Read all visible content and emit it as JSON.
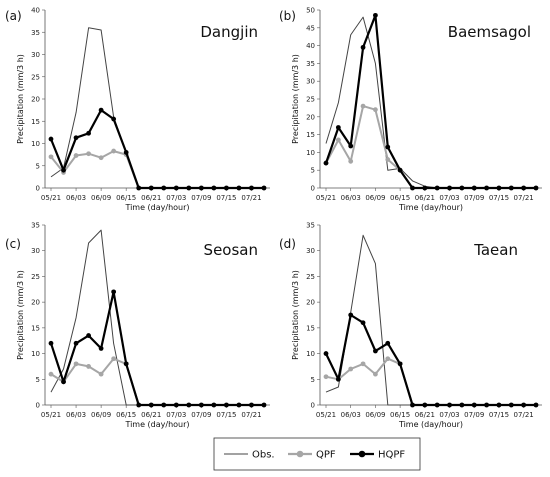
{
  "chart_data": [
    {
      "type": "line",
      "panel_label": "(a)",
      "title": "Dangjin",
      "xlabel": "Time (day/hour)",
      "ylabel": "Precipitation (mm/3 h)",
      "ylim": [
        0,
        40
      ],
      "yticks": [
        0,
        5,
        10,
        15,
        20,
        25,
        30,
        35,
        40
      ],
      "x": [
        "05/21",
        "05/24",
        "06/03",
        "06/06",
        "06/09",
        "06/12",
        "06/15",
        "06/18",
        "06/21",
        "06/24",
        "07/03",
        "07/06",
        "07/09",
        "07/12",
        "07/15",
        "07/18",
        "07/21",
        "07/24"
      ],
      "xticklabels": [
        "05/21",
        "06/03",
        "06/09",
        "06/15",
        "06/21",
        "07/03",
        "07/09",
        "07/15",
        "07/21"
      ],
      "series": [
        {
          "name": "Obs.",
          "values": [
            2.5,
            4.5,
            17,
            36,
            35.5,
            16,
            8,
            0,
            0,
            0,
            0,
            0,
            0,
            0,
            0,
            0,
            0,
            0
          ]
        },
        {
          "name": "QPF",
          "values": [
            7,
            3.5,
            7.3,
            7.7,
            6.8,
            8.3,
            7.5,
            0,
            0,
            0,
            0,
            0,
            0,
            0,
            0,
            0,
            0,
            0
          ]
        },
        {
          "name": "HQPF",
          "values": [
            11,
            4,
            11.3,
            12.3,
            17.5,
            15.5,
            8,
            0,
            0,
            0,
            0,
            0,
            0,
            0,
            0,
            0,
            0,
            0
          ]
        }
      ]
    },
    {
      "type": "line",
      "panel_label": "(b)",
      "title": "Baemsagol",
      "xlabel": "Time (day/hour)",
      "ylabel": "Precipitation (mm/3 h)",
      "ylim": [
        0,
        50
      ],
      "yticks": [
        0,
        5,
        10,
        15,
        20,
        25,
        30,
        35,
        40,
        45,
        50
      ],
      "x": [
        "05/21",
        "05/24",
        "06/03",
        "06/06",
        "06/09",
        "06/12",
        "06/15",
        "06/18",
        "06/21",
        "06/24",
        "07/03",
        "07/06",
        "07/09",
        "07/12",
        "07/15",
        "07/18",
        "07/21",
        "07/24"
      ],
      "xticklabels": [
        "05/21",
        "06/03",
        "06/09",
        "06/15",
        "06/21",
        "07/03",
        "07/09",
        "07/15",
        "07/21"
      ],
      "series": [
        {
          "name": "Obs.",
          "values": [
            12.5,
            24,
            43,
            48,
            35,
            5,
            5.5,
            2,
            0.5,
            0,
            0,
            0,
            0,
            0,
            0,
            0,
            0,
            0
          ]
        },
        {
          "name": "QPF",
          "values": [
            7,
            13.5,
            7.5,
            23,
            22,
            8,
            5,
            0,
            0,
            0,
            0,
            0,
            0,
            0,
            0,
            0,
            0,
            0
          ]
        },
        {
          "name": "HQPF",
          "values": [
            7,
            17,
            11.8,
            39.5,
            48.5,
            11.5,
            5,
            0,
            0,
            0,
            0,
            0,
            0,
            0,
            0,
            0,
            0,
            0
          ]
        }
      ]
    },
    {
      "type": "line",
      "panel_label": "(c)",
      "title": "Seosan",
      "xlabel": "Time (day/hour)",
      "ylabel": "Precipitation (mm/3 h)",
      "ylim": [
        0,
        35
      ],
      "yticks": [
        0,
        5,
        10,
        15,
        20,
        25,
        30,
        35
      ],
      "x": [
        "05/21",
        "05/24",
        "06/03",
        "06/06",
        "06/09",
        "06/12",
        "06/15",
        "06/18",
        "06/21",
        "06/24",
        "07/03",
        "07/06",
        "07/09",
        "07/12",
        "07/15",
        "07/18",
        "07/21",
        "07/24"
      ],
      "xticklabels": [
        "05/21",
        "06/03",
        "06/09",
        "06/15",
        "06/21",
        "07/03",
        "07/09",
        "07/15",
        "07/21"
      ],
      "series": [
        {
          "name": "Obs.",
          "values": [
            2.5,
            7,
            17,
            31.5,
            34,
            12,
            0,
            0,
            0,
            0,
            0,
            0,
            0,
            0,
            0,
            0,
            0,
            0
          ]
        },
        {
          "name": "QPF",
          "values": [
            6,
            4.5,
            8,
            7.5,
            6,
            9,
            8,
            0,
            0,
            0,
            0,
            0,
            0,
            0,
            0,
            0,
            0,
            0
          ]
        },
        {
          "name": "HQPF",
          "values": [
            12,
            4.5,
            12,
            13.5,
            11,
            22,
            8,
            0,
            0,
            0,
            0,
            0,
            0,
            0,
            0,
            0,
            0,
            0
          ]
        }
      ]
    },
    {
      "type": "line",
      "panel_label": "(d)",
      "title": "Taean",
      "xlabel": "Time (day/hour)",
      "ylabel": "Precipitation (mm/3 h)",
      "ylim": [
        0,
        35
      ],
      "yticks": [
        0,
        5,
        10,
        15,
        20,
        25,
        30,
        35
      ],
      "x": [
        "05/21",
        "05/24",
        "06/03",
        "06/06",
        "06/09",
        "06/12",
        "06/15",
        "06/18",
        "06/21",
        "06/24",
        "07/03",
        "07/06",
        "07/09",
        "07/12",
        "07/15",
        "07/18",
        "07/21",
        "07/24"
      ],
      "xticklabels": [
        "05/21",
        "06/03",
        "06/09",
        "06/15",
        "06/21",
        "07/03",
        "07/09",
        "07/15",
        "07/21"
      ],
      "series": [
        {
          "name": "Obs.",
          "values": [
            2.5,
            3.5,
            18,
            33,
            27.5,
            0,
            0,
            0,
            0,
            0,
            0,
            0,
            0,
            0,
            0,
            0,
            0,
            0
          ]
        },
        {
          "name": "QPF",
          "values": [
            5.5,
            5,
            7,
            8,
            6,
            9,
            8,
            0,
            0,
            0,
            0,
            0,
            0,
            0,
            0,
            0,
            0,
            0
          ]
        },
        {
          "name": "HQPF",
          "values": [
            10,
            5,
            17.5,
            16,
            10.5,
            12,
            8,
            0,
            0,
            0,
            0,
            0,
            0,
            0,
            0,
            0,
            0,
            0
          ]
        }
      ]
    }
  ],
  "legend": {
    "items": [
      {
        "label": "Obs.",
        "color": "#444444",
        "marker": "none"
      },
      {
        "label": "QPF",
        "color": "#a6a6a6",
        "marker": "circle"
      },
      {
        "label": "HQPF",
        "color": "#000000",
        "marker": "circle"
      }
    ]
  },
  "colors": {
    "obs": "#444444",
    "qpf": "#a6a6a6",
    "hqpf": "#000000"
  }
}
